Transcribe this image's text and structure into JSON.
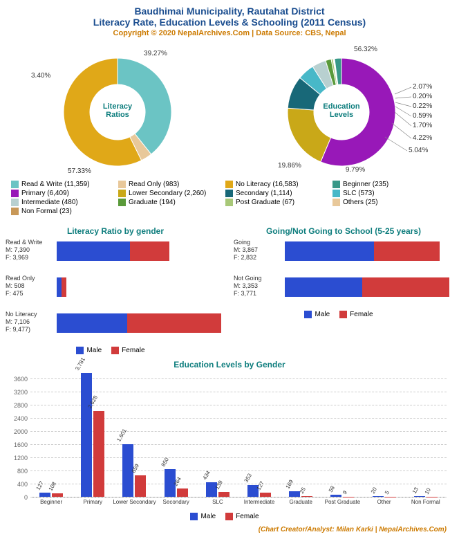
{
  "header": {
    "title_main": "Baudhimai Municipality, Rautahat District",
    "title_sub": "Literacy Rate, Education Levels & Schooling (2011 Census)",
    "copyright": "Copyright © 2020 NepalArchives.Com | Data Source: CBS, Nepal"
  },
  "colors": {
    "male": "#2b4dd1",
    "female": "#d13b3b",
    "title": "#1a4d8f",
    "section": "#0d7d7d",
    "accent": "#cc7a00"
  },
  "literacy_donut": {
    "center_label": "Literacy\nRatios",
    "slices": [
      {
        "label": "Read & Write",
        "count": 11359,
        "pct": 39.27,
        "color": "#6bc4c4"
      },
      {
        "label": "Read Only",
        "count": 983,
        "pct": 3.4,
        "color": "#e8c89a"
      },
      {
        "label": "No Literacy",
        "count": 16583,
        "pct": 57.33,
        "color": "#e0a818"
      }
    ],
    "pct_labels": [
      "39.27%",
      "3.40%",
      "57.33%"
    ]
  },
  "education_donut": {
    "center_label": "Education\nLevels",
    "slices": [
      {
        "label": "Primary",
        "count": 6409,
        "pct": 56.32,
        "color": "#9818b8"
      },
      {
        "label": "Lower Secondary",
        "count": 2260,
        "pct": 19.86,
        "color": "#c9a818"
      },
      {
        "label": "Secondary",
        "count": 1114,
        "pct": 9.79,
        "color": "#186878"
      },
      {
        "label": "SLC",
        "count": 573,
        "pct": 5.04,
        "color": "#48b8c8"
      },
      {
        "label": "Intermediate",
        "count": 480,
        "pct": 4.22,
        "color": "#b8d0d0"
      },
      {
        "label": "Graduate",
        "count": 194,
        "pct": 1.7,
        "color": "#5a9a3a"
      },
      {
        "label": "Post Graduate",
        "count": 67,
        "pct": 0.59,
        "color": "#a8c878"
      },
      {
        "label": "Others",
        "count": 25,
        "pct": 0.22,
        "color": "#e8c89a"
      },
      {
        "label": "Non Formal",
        "count": 23,
        "pct": 0.2,
        "color": "#c89858"
      },
      {
        "label": "Beginner",
        "count": 235,
        "pct": 2.07,
        "color": "#389888"
      }
    ],
    "pct_labels": [
      "56.32%",
      "2.07%",
      "0.20%",
      "0.22%",
      "0.59%",
      "1.70%",
      "4.22%",
      "5.04%",
      "19.86%",
      "9.79%"
    ]
  },
  "combined_legend": [
    {
      "label": "Read & Write (11,359)",
      "color": "#6bc4c4"
    },
    {
      "label": "Read Only (983)",
      "color": "#e8c89a"
    },
    {
      "label": "No Literacy (16,583)",
      "color": "#e0a818"
    },
    {
      "label": "Beginner (235)",
      "color": "#389888"
    },
    {
      "label": "Primary (6,409)",
      "color": "#9818b8"
    },
    {
      "label": "Lower Secondary (2,260)",
      "color": "#c9a818"
    },
    {
      "label": "Secondary (1,114)",
      "color": "#186878"
    },
    {
      "label": "SLC (573)",
      "color": "#48b8c8"
    },
    {
      "label": "Intermediate (480)",
      "color": "#b8d0d0"
    },
    {
      "label": "Graduate (194)",
      "color": "#5a9a3a"
    },
    {
      "label": "Post Graduate (67)",
      "color": "#a8c878"
    },
    {
      "label": "Others (25)",
      "color": "#e8c89a"
    },
    {
      "label": "Non Formal (23)",
      "color": "#c89858"
    }
  ],
  "literacy_gender": {
    "title": "Literacy Ratio by gender",
    "max": 16583,
    "groups": [
      {
        "name": "Read & Write",
        "m": 7390,
        "f": 3969,
        "m_label": "M: 7,390",
        "f_label": "F: 3,969"
      },
      {
        "name": "Read Only",
        "m": 508,
        "f": 475,
        "m_label": "M: 508",
        "f_label": "F: 475"
      },
      {
        "name": "No Literacy",
        "m": 7106,
        "f": 9477,
        "m_label": "M: 7,106",
        "f_label": "F: 9,477)"
      }
    ]
  },
  "schooling": {
    "title": "Going/Not Going to School (5-25 years)",
    "max": 7124,
    "groups": [
      {
        "name": "Going",
        "m": 3867,
        "f": 2832,
        "m_label": "M: 3,867",
        "f_label": "F: 2,832"
      },
      {
        "name": "Not Going",
        "m": 3353,
        "f": 3771,
        "m_label": "M: 3,353",
        "f_label": "F: 3,771"
      }
    ]
  },
  "gender_legend": {
    "male": "Male",
    "female": "Female"
  },
  "edu_gender": {
    "title": "Education Levels by Gender",
    "ymax": 3800,
    "ystep": 400,
    "categories": [
      {
        "name": "Beginner",
        "m": 127,
        "f": 108
      },
      {
        "name": "Primary",
        "m": 3781,
        "f": 2628
      },
      {
        "name": "Lower Secondary",
        "m": 1601,
        "f": 659
      },
      {
        "name": "Secondary",
        "m": 850,
        "f": 264
      },
      {
        "name": "SLC",
        "m": 434,
        "f": 139
      },
      {
        "name": "Intermediate",
        "m": 353,
        "f": 127
      },
      {
        "name": "Graduate",
        "m": 169,
        "f": 25
      },
      {
        "name": "Post Graduate",
        "m": 58,
        "f": 9
      },
      {
        "name": "Other",
        "m": 20,
        "f": 5
      },
      {
        "name": "Non Formal",
        "m": 13,
        "f": 10
      }
    ]
  },
  "credit": "(Chart Creator/Analyst: Milan Karki | NepalArchives.Com)"
}
